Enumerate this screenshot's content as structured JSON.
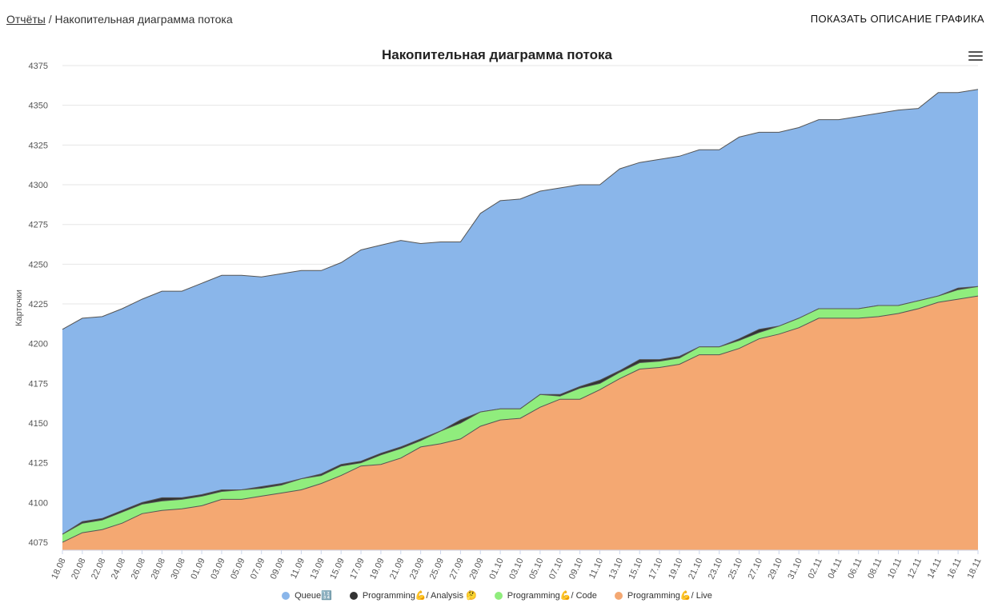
{
  "breadcrumb": {
    "root": "Отчёты",
    "separator": " / ",
    "current": "Накопительная диаграмма потока"
  },
  "header": {
    "show_description_label": "ПОКАЗАТЬ ОПИСАНИЕ ГРАФИКА"
  },
  "colors": {
    "queue": "#8ab6ea",
    "analysis": "#333333",
    "code": "#90ed7d",
    "live": "#f4a872",
    "grid": "#e6e6e6",
    "line": "#555555"
  },
  "chart_data": {
    "type": "area",
    "title": "Накопительная диаграмма потока",
    "ylabel": "Карточки",
    "xlabel": "",
    "ylim": [
      4070,
      4375
    ],
    "yticks": [
      4075,
      4100,
      4125,
      4150,
      4175,
      4200,
      4225,
      4250,
      4275,
      4300,
      4325,
      4350,
      4375
    ],
    "grid": true,
    "legend_position": "bottom",
    "x_tick_labels": [
      "18.08",
      "20.08",
      "22.08",
      "24.08",
      "26.08",
      "28.08",
      "30.08",
      "01.09",
      "03.09",
      "05.09",
      "07.09",
      "09.09",
      "11.09",
      "13.09",
      "15.09",
      "17.09",
      "19.09",
      "21.09",
      "23.09",
      "25.09",
      "27.09",
      "29.09",
      "01.10",
      "03.10",
      "05.10",
      "07.10",
      "09.10",
      "11.10",
      "13.10",
      "15.10",
      "17.10",
      "19.10",
      "21.10",
      "23.10",
      "25.10",
      "27.10",
      "29.10",
      "31.10",
      "02.11",
      "04.11",
      "06.11",
      "08.11",
      "10.11",
      "12.11",
      "14.11",
      "16.11",
      "18.11"
    ],
    "stacking": "cumulative",
    "series": [
      {
        "name": "Queue🔢",
        "color": "#8ab6ea",
        "totals": [
          4209,
          4216,
          4217,
          4222,
          4228,
          4233,
          4233,
          4238,
          4243,
          4243,
          4242,
          4244,
          4246,
          4246,
          4251,
          4259,
          4262,
          4265,
          4263,
          4264,
          4264,
          4282,
          4290,
          4291,
          4296,
          4298,
          4300,
          4300,
          4310,
          4314,
          4316,
          4318,
          4322,
          4322,
          4330,
          4333,
          4333,
          4336,
          4341,
          4341,
          4343,
          4345,
          4347,
          4348,
          4358,
          4358,
          4360
        ]
      },
      {
        "name": "Programming💪/ Analysis 🤔",
        "color": "#333333",
        "totals": [
          4080,
          4088,
          4090,
          4095,
          4100,
          4103,
          4103,
          4105,
          4108,
          4108,
          4110,
          4112,
          4115,
          4118,
          4124,
          4126,
          4131,
          4135,
          4140,
          4145,
          4152,
          4157,
          4159,
          4159,
          4168,
          4168,
          4173,
          4177,
          4183,
          4190,
          4190,
          4192,
          4198,
          4198,
          4203,
          4209,
          4211,
          4216,
          4222,
          4222,
          4222,
          4224,
          4224,
          4227,
          4230,
          4235,
          4236
        ]
      },
      {
        "name": "Programming💪/ Code",
        "color": "#90ed7d",
        "totals": [
          4080,
          4087,
          4089,
          4094,
          4099,
          4101,
          4102,
          4104,
          4107,
          4108,
          4109,
          4111,
          4115,
          4117,
          4123,
          4125,
          4130,
          4134,
          4139,
          4145,
          4150,
          4157,
          4159,
          4159,
          4168,
          4167,
          4172,
          4175,
          4182,
          4188,
          4189,
          4191,
          4198,
          4198,
          4202,
          4207,
          4211,
          4216,
          4222,
          4222,
          4222,
          4224,
          4224,
          4227,
          4230,
          4234,
          4236
        ]
      },
      {
        "name": "Programming💪/ Live",
        "color": "#f4a872",
        "totals": [
          4075,
          4081,
          4083,
          4087,
          4093,
          4095,
          4096,
          4098,
          4102,
          4102,
          4104,
          4106,
          4108,
          4112,
          4117,
          4123,
          4124,
          4128,
          4135,
          4137,
          4140,
          4148,
          4152,
          4153,
          4160,
          4165,
          4165,
          4171,
          4178,
          4184,
          4185,
          4187,
          4193,
          4193,
          4197,
          4203,
          4206,
          4210,
          4216,
          4216,
          4216,
          4217,
          4219,
          4222,
          4226,
          4228,
          4230
        ]
      }
    ]
  }
}
